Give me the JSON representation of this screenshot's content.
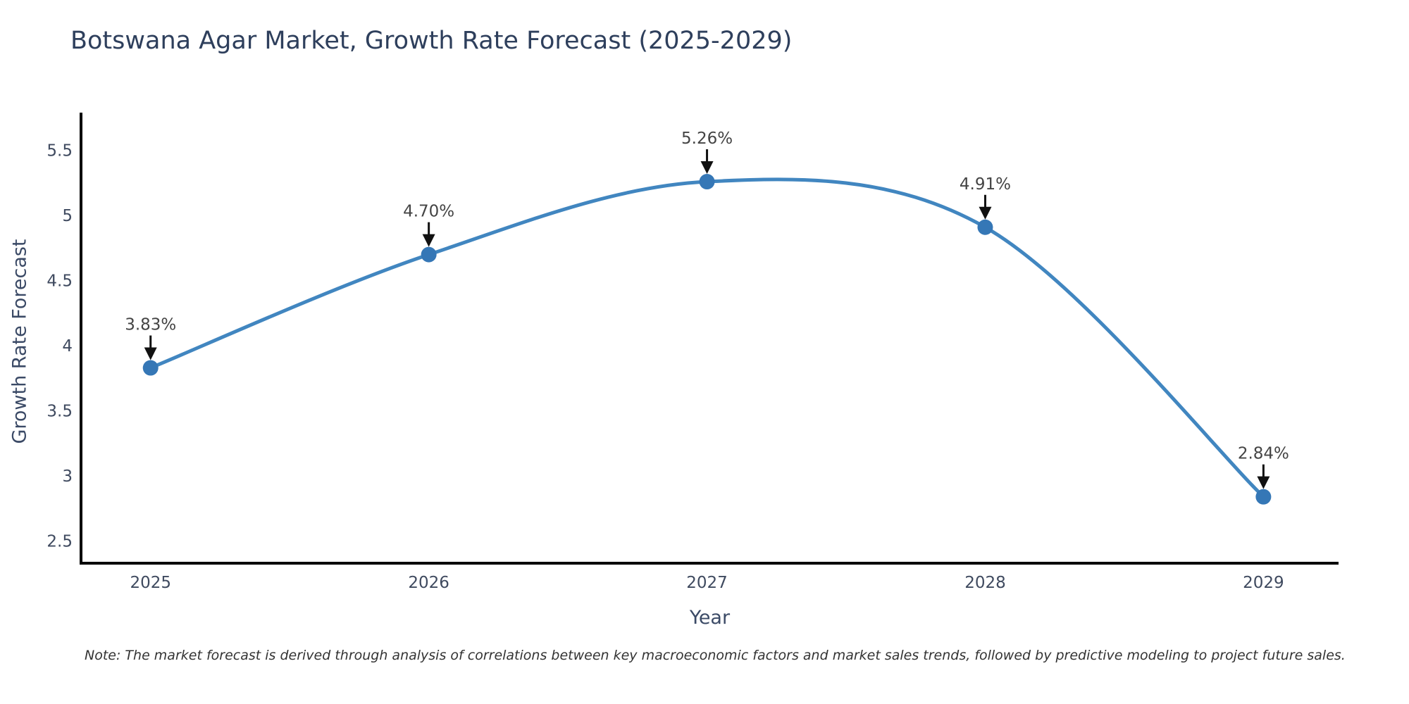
{
  "title": "Botswana Agar Market, Growth Rate Forecast (2025-2029)",
  "note": "Note: The market forecast is derived through analysis of correlations between key macroeconomic factors and market sales trends, followed by predictive modeling to project future sales.",
  "chart_data": {
    "type": "line",
    "title": "Botswana Agar Market, Growth Rate Forecast (2025-2029)",
    "xlabel": "Year",
    "ylabel": "Growth Rate Forecast",
    "x": [
      2025,
      2026,
      2027,
      2028,
      2029
    ],
    "values": [
      3.83,
      4.7,
      5.26,
      4.91,
      2.84
    ],
    "point_labels": [
      "3.83%",
      "4.70%",
      "5.26%",
      "4.91%",
      "2.84%"
    ],
    "xtick_labels": [
      "2025",
      "2026",
      "2027",
      "2028",
      "2029"
    ],
    "yticks": [
      2.5,
      3,
      3.5,
      4,
      4.5,
      5,
      5.5
    ],
    "ytick_labels": [
      "2.5",
      "3",
      "3.5",
      "4",
      "4.5",
      "5",
      "5.5"
    ],
    "ylim": [
      2.33,
      5.79
    ],
    "xlim": [
      2024.75,
      2029.27
    ],
    "line_shape": "spline",
    "grid": false,
    "legend_position": "none",
    "annotation_note": "Note: The market forecast is derived through analysis of correlations between key macroeconomic factors and market sales trends, followed by predictive modeling to project future sales.",
    "colors": {
      "line": "#4186c0",
      "marker": "#3577b6",
      "axis_line": "#000000",
      "arrow": "#111111",
      "annotation_text": "#444444",
      "title_text": "#2e3f5c",
      "tick_text": "#3f4a5f"
    }
  }
}
